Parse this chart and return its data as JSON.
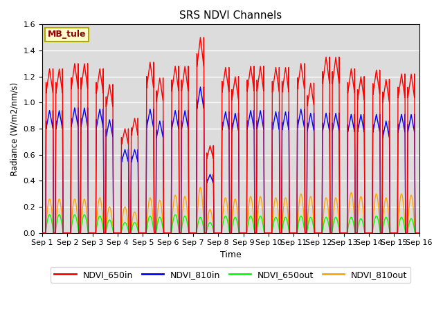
{
  "title": "SRS NDVI Channels",
  "xlabel": "Time",
  "ylabel": "Radiance (W/m2/nm/s)",
  "annotation": "MB_tule",
  "ylim": [
    0,
    1.6
  ],
  "legend_labels": [
    "NDVI_650in",
    "NDVI_810in",
    "NDVI_650out",
    "NDVI_810out"
  ],
  "legend_colors": [
    "red",
    "blue",
    "lime",
    "orange"
  ],
  "xtick_labels": [
    "Sep 1",
    "Sep 2",
    "Sep 3",
    "Sep 4",
    "Sep 5",
    "Sep 6",
    "Sep 7",
    "Sep 8",
    "Sep 9",
    "Sep 10",
    "Sep 11",
    "Sep 12",
    "Sep 13",
    "Sep 14",
    "Sep 15",
    "Sep 16"
  ],
  "background_color": "#dcdcdc",
  "n_days": 15,
  "peaks_650in_am": [
    1.26,
    1.3,
    1.26,
    0.8,
    1.31,
    1.28,
    1.5,
    1.27,
    1.28,
    1.27,
    1.3,
    1.35,
    1.26,
    1.25,
    1.22
  ],
  "peaks_650in_pm": [
    1.26,
    1.3,
    1.14,
    0.88,
    1.19,
    1.28,
    0.67,
    1.2,
    1.28,
    1.27,
    1.15,
    1.35,
    1.2,
    1.18,
    1.22
  ],
  "peaks_810in_am": [
    0.94,
    0.96,
    0.95,
    0.64,
    0.95,
    0.94,
    1.12,
    0.93,
    0.94,
    0.93,
    0.95,
    0.92,
    0.91,
    0.91,
    0.91
  ],
  "peaks_810in_pm": [
    0.94,
    0.96,
    0.87,
    0.64,
    0.86,
    0.94,
    0.45,
    0.92,
    0.94,
    0.93,
    0.92,
    0.92,
    0.91,
    0.86,
    0.91
  ],
  "peaks_650out_am": [
    0.14,
    0.14,
    0.13,
    0.08,
    0.13,
    0.14,
    0.12,
    0.13,
    0.13,
    0.12,
    0.13,
    0.12,
    0.12,
    0.13,
    0.12
  ],
  "peaks_650out_pm": [
    0.14,
    0.14,
    0.1,
    0.08,
    0.12,
    0.13,
    0.08,
    0.12,
    0.13,
    0.12,
    0.12,
    0.12,
    0.11,
    0.12,
    0.11
  ],
  "peaks_810out_am": [
    0.26,
    0.26,
    0.27,
    0.2,
    0.27,
    0.29,
    0.35,
    0.27,
    0.28,
    0.27,
    0.3,
    0.27,
    0.31,
    0.3,
    0.3
  ],
  "peaks_810out_pm": [
    0.26,
    0.26,
    0.2,
    0.16,
    0.25,
    0.28,
    0.18,
    0.26,
    0.28,
    0.27,
    0.28,
    0.27,
    0.28,
    0.27,
    0.29
  ]
}
